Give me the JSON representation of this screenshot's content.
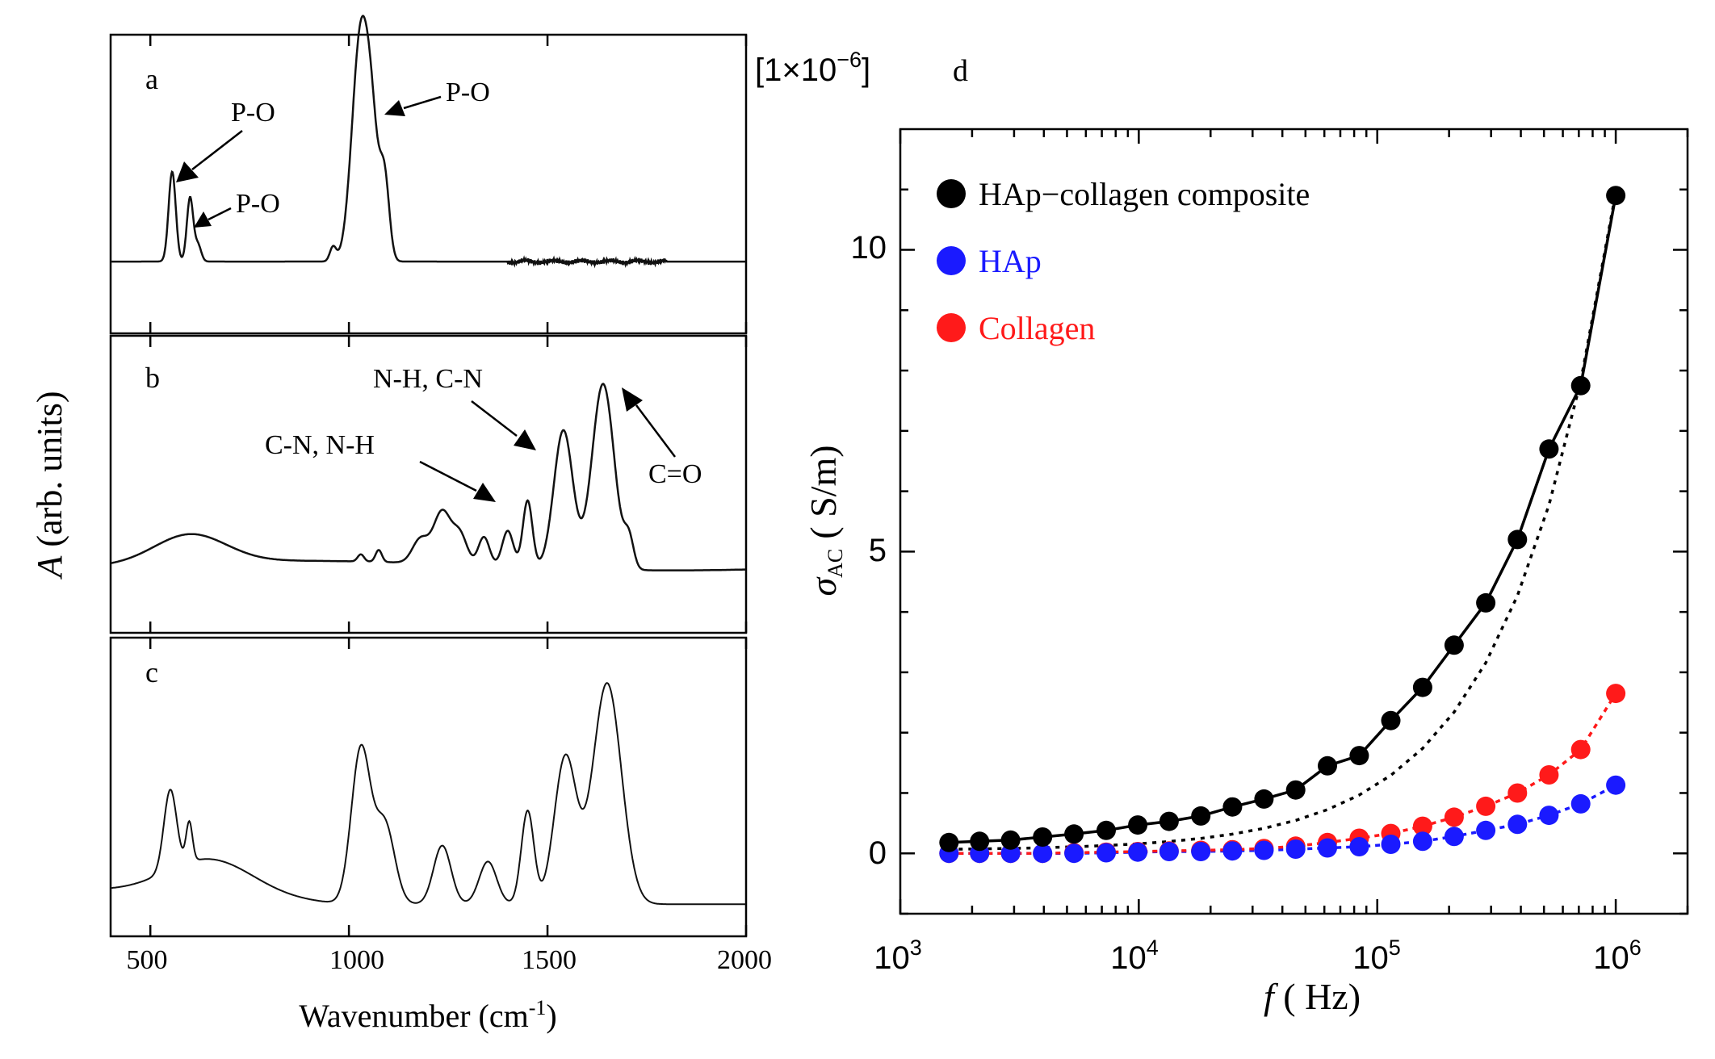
{
  "colors": {
    "axis": "#000000",
    "spectrum": "#111111",
    "composite": "#000000",
    "hap": "#1a1aff",
    "collagen": "#ff1a1a"
  },
  "chart_data": [
    {
      "id": "a",
      "type": "line",
      "panel_label": "a",
      "xlabel": "Wavenumber (cm-1)",
      "xlabel_main": "Wavenumber (cm",
      "xlabel_sup": "-1",
      "xlabel_close": ")",
      "ylabel": "A (arb. units)",
      "ylabel_var": "A",
      "ylabel_rest": " (arb. units)",
      "xlim": [
        400,
        2000
      ],
      "ylim": [
        0,
        1.0
      ],
      "x_ticks": [
        500,
        1000,
        1500,
        2000
      ],
      "annotations": [
        "P-O",
        "P-O",
        "P-O"
      ],
      "peaks": [
        {
          "x": 555,
          "height": 0.38,
          "width": 9
        },
        {
          "x": 600,
          "height": 0.27,
          "width": 8
        },
        {
          "x": 620,
          "height": 0.07,
          "width": 8
        },
        {
          "x": 960,
          "height": 0.06,
          "width": 8
        },
        {
          "x": 1030,
          "height": 0.96,
          "width": 22
        },
        {
          "x": 1060,
          "height": 0.35,
          "width": 16
        },
        {
          "x": 1090,
          "height": 0.33,
          "width": 12
        }
      ],
      "baseline": 0.15,
      "noise": [
        {
          "from": 1400,
          "to": 1800,
          "amp": 0.01
        }
      ]
    },
    {
      "id": "b",
      "type": "line",
      "panel_label": "b",
      "xlim": [
        400,
        2000
      ],
      "ylim": [
        0,
        1.0
      ],
      "x_ticks": [
        500,
        1000,
        1500,
        2000
      ],
      "annotations": [
        "N-H, C-N",
        "C-N, N-H",
        "C=O"
      ],
      "peaks": [
        {
          "x": 600,
          "height": 0.12,
          "width": 90
        },
        {
          "x": 1030,
          "height": 0.03,
          "width": 8
        },
        {
          "x": 1075,
          "height": 0.05,
          "width": 8
        },
        {
          "x": 1180,
          "height": 0.1,
          "width": 20
        },
        {
          "x": 1235,
          "height": 0.22,
          "width": 22
        },
        {
          "x": 1280,
          "height": 0.12,
          "width": 18
        },
        {
          "x": 1340,
          "height": 0.12,
          "width": 14
        },
        {
          "x": 1400,
          "height": 0.15,
          "width": 14
        },
        {
          "x": 1450,
          "height": 0.28,
          "width": 12
        },
        {
          "x": 1540,
          "height": 0.58,
          "width": 24
        },
        {
          "x": 1640,
          "height": 0.78,
          "width": 28
        },
        {
          "x": 1705,
          "height": 0.12,
          "width": 12
        }
      ],
      "baseline": 0.15
    },
    {
      "id": "c",
      "type": "line",
      "panel_label": "c",
      "xlim": [
        400,
        2000
      ],
      "ylim": [
        0,
        1.0
      ],
      "x_ticks": [
        500,
        1000,
        1500,
        2000
      ],
      "x_tick_labels": [
        "500",
        "1000",
        "1500",
        "2000"
      ],
      "peaks": [
        {
          "x": 550,
          "height": 0.3,
          "width": 16
        },
        {
          "x": 598,
          "height": 0.15,
          "width": 8
        },
        {
          "x": 650,
          "height": 0.14,
          "width": 110
        },
        {
          "x": 1030,
          "height": 0.58,
          "width": 24
        },
        {
          "x": 1090,
          "height": 0.3,
          "width": 25
        },
        {
          "x": 1235,
          "height": 0.22,
          "width": 22
        },
        {
          "x": 1350,
          "height": 0.16,
          "width": 22
        },
        {
          "x": 1450,
          "height": 0.35,
          "width": 16
        },
        {
          "x": 1545,
          "height": 0.55,
          "width": 28
        },
        {
          "x": 1650,
          "height": 0.83,
          "width": 36
        }
      ],
      "baseline": 0.06
    },
    {
      "id": "d",
      "type": "scatter",
      "panel_label": "d",
      "x_scale": "log",
      "xlim": [
        1000,
        2000000
      ],
      "ylim": [
        -1.0,
        12.0
      ],
      "x_tick_exponents": [
        3,
        4,
        5,
        6
      ],
      "x_tick_base": "10",
      "y_ticks": [
        0,
        5,
        10
      ],
      "y_tick_labels": [
        "0",
        "5",
        "10"
      ],
      "xlabel_var": "f",
      "xlabel_unit": " ( Hz)",
      "ylabel_var": "σ",
      "ylabel_sub": "AC",
      "ylabel_unit": "( S/m)",
      "multiplier_prefix": "[1×10",
      "multiplier_exp": "−6",
      "multiplier_suffix": "]",
      "x": [
        1600,
        2150,
        2900,
        3950,
        5350,
        7300,
        9900,
        13400,
        18200,
        24700,
        33500,
        45500,
        61800,
        84000,
        114000,
        155000,
        210000,
        285000,
        387000,
        525000,
        713000,
        1000000
      ],
      "series": [
        {
          "name": "HAp−collagen composite",
          "color": "#000000",
          "values": [
            0.18,
            0.2,
            0.22,
            0.27,
            0.32,
            0.38,
            0.47,
            0.53,
            0.62,
            0.77,
            0.9,
            1.05,
            1.45,
            1.62,
            2.2,
            2.75,
            3.45,
            4.15,
            5.2,
            6.7,
            7.75,
            10.9
          ]
        },
        {
          "name": "HAp",
          "color": "#1a1aff",
          "values": [
            0.0,
            0.0,
            0.0,
            0.0,
            0.0,
            0.01,
            0.02,
            0.03,
            0.03,
            0.04,
            0.05,
            0.07,
            0.09,
            0.11,
            0.15,
            0.2,
            0.28,
            0.38,
            0.48,
            0.63,
            0.82,
            1.13
          ]
        },
        {
          "name": "Collagen",
          "color": "#ff1a1a",
          "values": [
            0.0,
            0.0,
            0.0,
            0.0,
            0.01,
            0.02,
            0.03,
            0.04,
            0.05,
            0.06,
            0.08,
            0.12,
            0.18,
            0.25,
            0.33,
            0.45,
            0.6,
            0.78,
            1.0,
            1.3,
            1.72,
            2.65
          ]
        }
      ],
      "legend_position": "top-left"
    }
  ]
}
